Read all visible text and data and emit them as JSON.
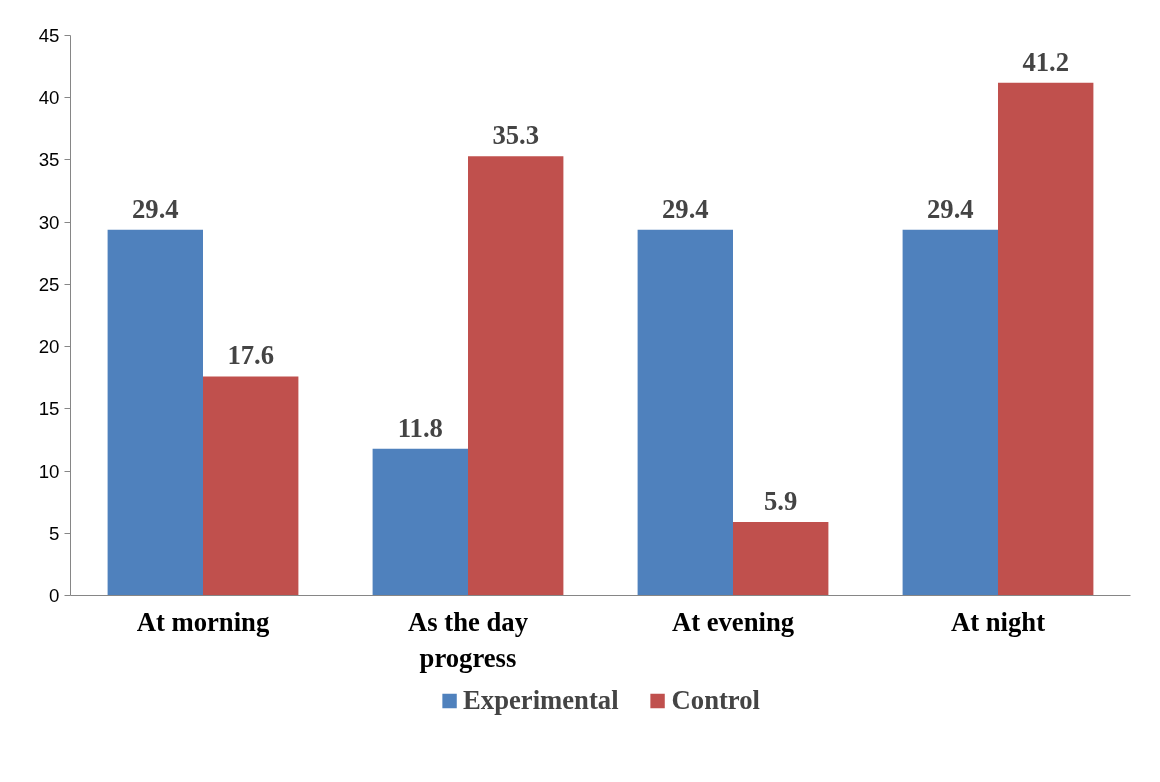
{
  "chart_data": {
    "type": "bar",
    "categories": [
      "At morning",
      "As the day progress",
      "At evening",
      "At night"
    ],
    "series": [
      {
        "name": "Experimental",
        "color": "#4f81bd",
        "values": [
          29.4,
          11.8,
          29.4,
          29.4
        ]
      },
      {
        "name": "Control",
        "color": "#c0504d",
        "values": [
          17.6,
          35.3,
          5.9,
          41.2
        ]
      }
    ],
    "ylim": [
      0,
      45
    ],
    "yticks": [
      0,
      5,
      10,
      15,
      20,
      25,
      30,
      35,
      40,
      45
    ],
    "grid": false,
    "legend": "bottom",
    "data_labels": true
  }
}
